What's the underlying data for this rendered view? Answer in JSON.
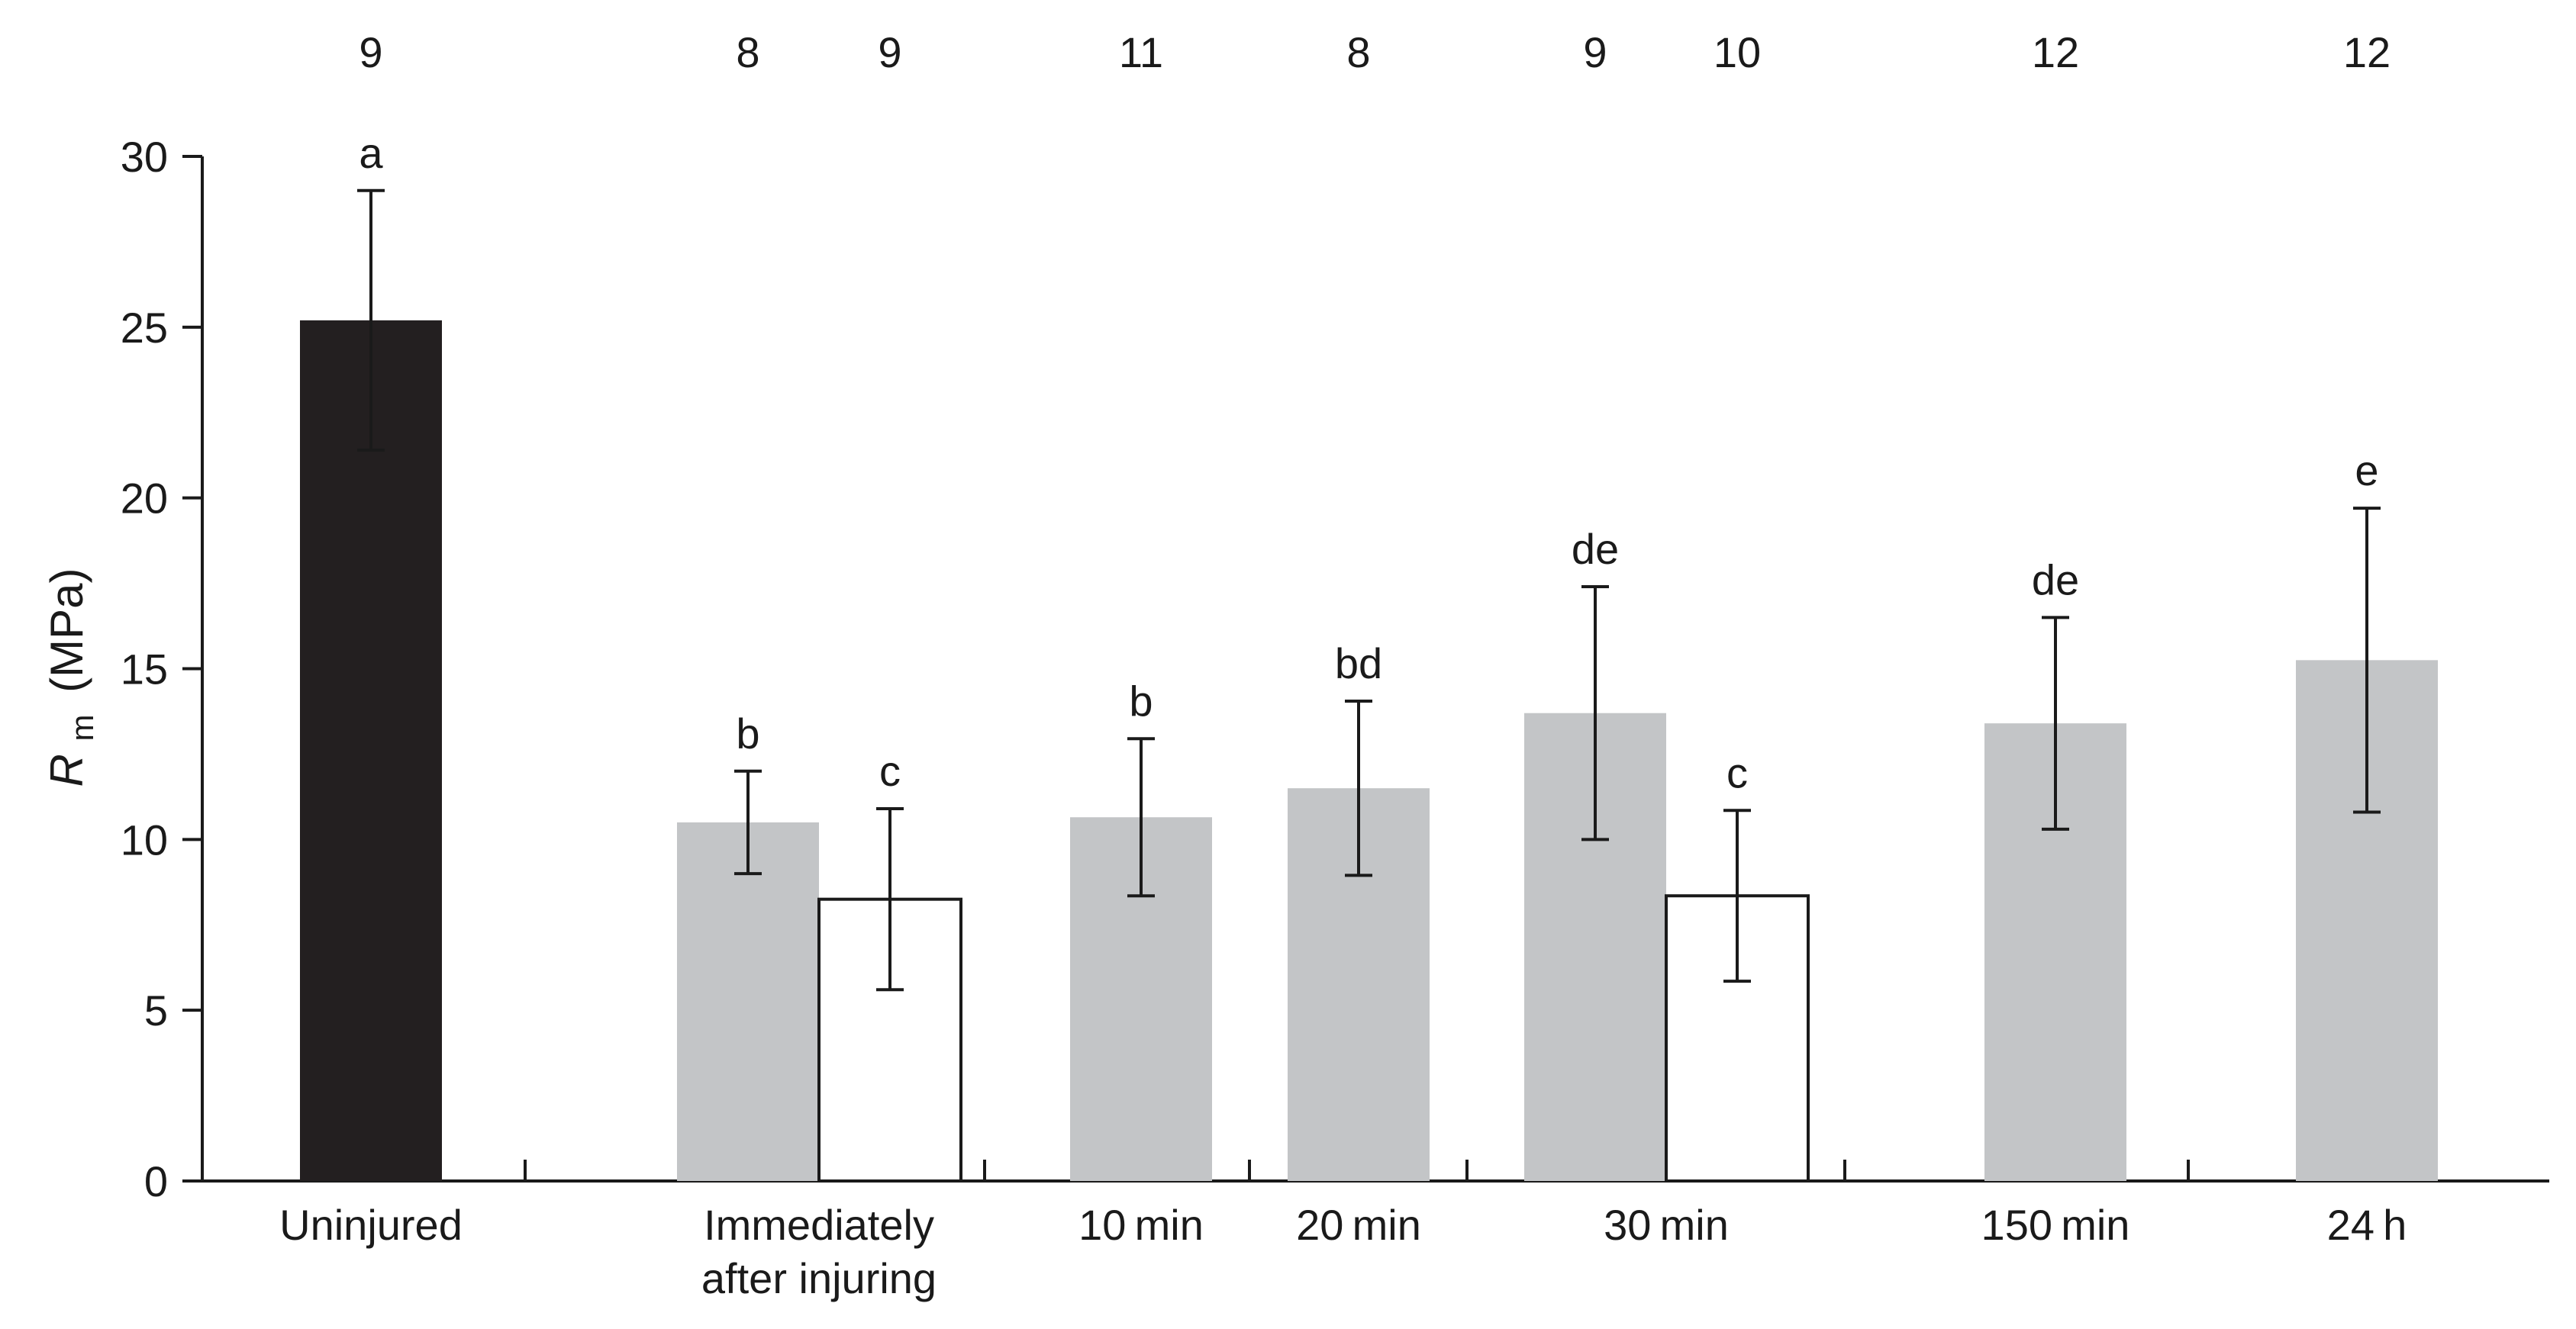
{
  "chart_data": {
    "type": "bar",
    "title": "",
    "xlabel": "",
    "ylabel": "(MPa)",
    "ylabel_symbol": "R",
    "ylabel_subscript": "m",
    "ylim": [
      0,
      30
    ],
    "yticks": [
      0,
      5,
      10,
      15,
      20,
      25,
      30
    ],
    "colors": {
      "uninjured": "#231f20",
      "grey": "#c3c5c7",
      "white": "#ffffff",
      "stroke": "#1a1a1a"
    },
    "groups": [
      {
        "label": [
          "Uninjured"
        ],
        "bars": [
          {
            "value": 25.2,
            "error": 3.8,
            "letter": "a",
            "n": "9",
            "fill": "uninjured"
          }
        ]
      },
      {
        "label": [
          "Immediately",
          "after injuring"
        ],
        "bars": [
          {
            "value": 10.5,
            "error": 1.5,
            "letter": "b",
            "n": "8",
            "fill": "grey"
          },
          {
            "value": 8.25,
            "error": 2.65,
            "letter": "c",
            "n": "9",
            "fill": "white"
          }
        ]
      },
      {
        "label": [
          "10 min"
        ],
        "bars": [
          {
            "value": 10.65,
            "error": 2.3,
            "letter": "b",
            "n": "11",
            "fill": "grey"
          }
        ]
      },
      {
        "label": [
          "20 min"
        ],
        "bars": [
          {
            "value": 11.5,
            "error": 2.55,
            "letter": "bd",
            "n": "8",
            "fill": "grey"
          }
        ]
      },
      {
        "label": [
          "30 min"
        ],
        "bars": [
          {
            "value": 13.7,
            "error": 3.7,
            "letter": "de",
            "n": "9",
            "fill": "grey"
          },
          {
            "value": 8.35,
            "error": 2.5,
            "letter": "c",
            "n": "10",
            "fill": "white"
          }
        ]
      },
      {
        "label": [
          "150 min"
        ],
        "bars": [
          {
            "value": 13.4,
            "error": 3.1,
            "letter": "de",
            "n": "12",
            "fill": "grey"
          }
        ]
      },
      {
        "label": [
          "24 h"
        ],
        "bars": [
          {
            "value": 15.25,
            "error": 4.45,
            "letter": "e",
            "n": "12",
            "fill": "grey"
          }
        ]
      }
    ]
  }
}
